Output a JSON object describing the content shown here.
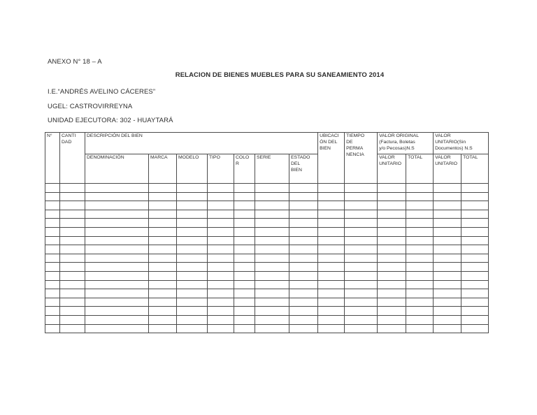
{
  "header": {
    "anexo": "ANEXO N° 18 – A",
    "title": "RELACION DE BIENES MUEBLES PARA SU SANEAMIENTO 2014",
    "institution": "I.E.“ANDRÉS AVELINO CÁCERES”",
    "ugel": "UGEL: CASTROVIRREYNA",
    "unidad_ejecutora": "UNIDAD EJECUTORA: 302 - HUAYTARÁ"
  },
  "table": {
    "headers": {
      "num": "N°",
      "cantidad": "CANTI\nDAD",
      "descripcion_group": "DESCRIPCIÓN DEL BIEN",
      "denominacion": "DENOMINACIÓN",
      "marca": "MARCA",
      "modelo": "MODELO",
      "tipo": "TIPO",
      "color": "COLO\nR",
      "serie": "SERIE",
      "estado_del_bien": "ESTADO\nDEL\nBIEN",
      "ubicacion_del_bien": "UBICACI\nÓN DEL\nBIEN",
      "tiempo_permanencia": "TIEMPO\nDE\nPERMA\nNENCIA",
      "valor_original_group": "VALOR ORIGINAL\n(Factura, Boletas\ny/o Pecosas)N.S",
      "valor_sin_documentos_group": "VALOR\nUNITARIO(Sin\nDocumentos) N.S",
      "valor_unitario": "VALOR\nUNITARIO",
      "total": "TOTAL"
    },
    "empty_rows": 17,
    "columns_count": 15
  },
  "colors": {
    "page_background": "#ffffff",
    "table_border": "#4b4b4b",
    "text": "#2d2d2d"
  }
}
